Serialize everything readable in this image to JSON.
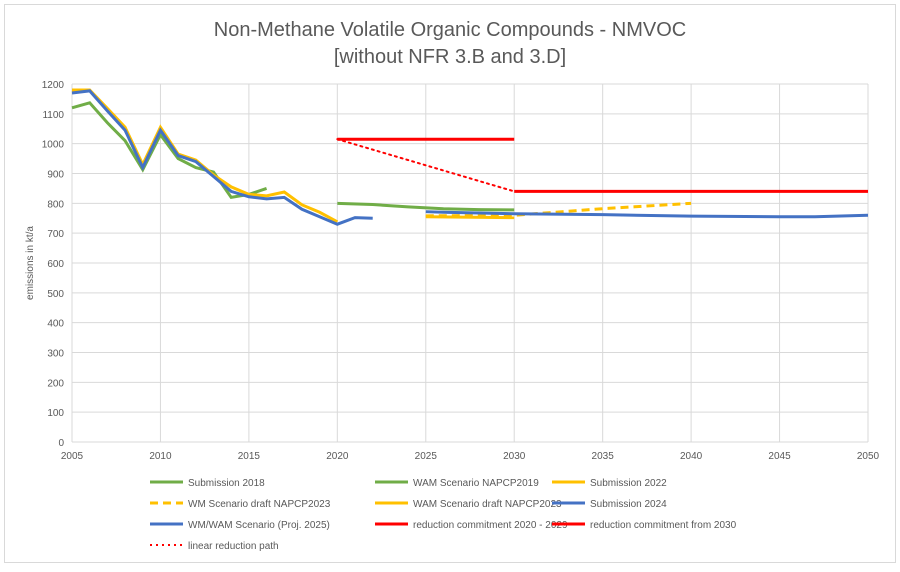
{
  "chart_data": {
    "type": "line",
    "title": [
      "Non-Methane Volatile Organic Compounds - NMVOC",
      "[without NFR 3.B and 3.D]"
    ],
    "xlabel": "",
    "ylabel": "emissions in kt/a",
    "xlim": [
      2005,
      2050
    ],
    "ylim": [
      0,
      1200
    ],
    "xticks": [
      2005,
      2010,
      2015,
      2020,
      2025,
      2030,
      2035,
      2040,
      2045,
      2050
    ],
    "yticks": [
      0,
      100,
      200,
      300,
      400,
      500,
      600,
      700,
      800,
      900,
      1000,
      1100,
      1200
    ],
    "grid": true,
    "legend_position": "bottom",
    "series": [
      {
        "name": "Submission 2018",
        "color": "#70AD47",
        "style": "solid",
        "x": [
          2005,
          2006,
          2007,
          2008,
          2009,
          2010,
          2011,
          2012,
          2013,
          2014,
          2015,
          2016
        ],
        "y": [
          1120,
          1137,
          1070,
          1010,
          913,
          1030,
          950,
          920,
          905,
          820,
          830,
          850
        ]
      },
      {
        "name": "WAM Scenario NAPCP2019",
        "color": "#70AD47",
        "style": "solid",
        "x": [
          2020,
          2022,
          2024,
          2026,
          2028,
          2030
        ],
        "y": [
          800,
          796,
          788,
          782,
          779,
          778
        ]
      },
      {
        "name": "Submission 2022",
        "color": "#FFC000",
        "style": "solid",
        "x": [
          2005,
          2006,
          2007,
          2008,
          2009,
          2010,
          2011,
          2012,
          2013,
          2014,
          2015,
          2016,
          2017,
          2018,
          2019,
          2020
        ],
        "y": [
          1180,
          1180,
          1118,
          1055,
          930,
          1055,
          965,
          945,
          895,
          855,
          830,
          825,
          838,
          795,
          770,
          738
        ]
      },
      {
        "name": "WM Scenario draft NAPCP2023",
        "color": "#FFC000",
        "style": "dashed",
        "x": [
          2025,
          2030,
          2035,
          2040
        ],
        "y": [
          758,
          760,
          782,
          800
        ]
      },
      {
        "name": "WAM Scenario draft NAPCP2023",
        "color": "#FFC000",
        "style": "solid",
        "x": [
          2025,
          2030
        ],
        "y": [
          755,
          752
        ]
      },
      {
        "name": "Submission 2024",
        "color": "#4472C4",
        "style": "solid",
        "x": [
          2005,
          2006,
          2007,
          2008,
          2009,
          2010,
          2011,
          2012,
          2013,
          2014,
          2015,
          2016,
          2017,
          2018,
          2019,
          2020,
          2021,
          2022
        ],
        "y": [
          1170,
          1177,
          1110,
          1045,
          920,
          1045,
          960,
          940,
          890,
          840,
          822,
          815,
          820,
          780,
          755,
          730,
          752,
          750
        ]
      },
      {
        "name": "WM/WAM Scenario (Proj. 2025)",
        "color": "#4472C4",
        "style": "solid",
        "x": [
          2025,
          2026,
          2030,
          2035,
          2040,
          2045,
          2047,
          2050
        ],
        "y": [
          772,
          770,
          765,
          762,
          757,
          755,
          755,
          760
        ]
      },
      {
        "name": "reduction commitment 2020 - 2029",
        "color": "#FF0000",
        "style": "solid",
        "x": [
          2020,
          2030
        ],
        "y": [
          1015,
          1015
        ]
      },
      {
        "name": "reduction commitment from 2030",
        "color": "#FF0000",
        "style": "solid",
        "x": [
          2030,
          2050
        ],
        "y": [
          840,
          840
        ]
      },
      {
        "name": "linear reduction path",
        "color": "#FF0000",
        "style": "dotted",
        "x": [
          2020,
          2030
        ],
        "y": [
          1015,
          840
        ]
      }
    ]
  }
}
